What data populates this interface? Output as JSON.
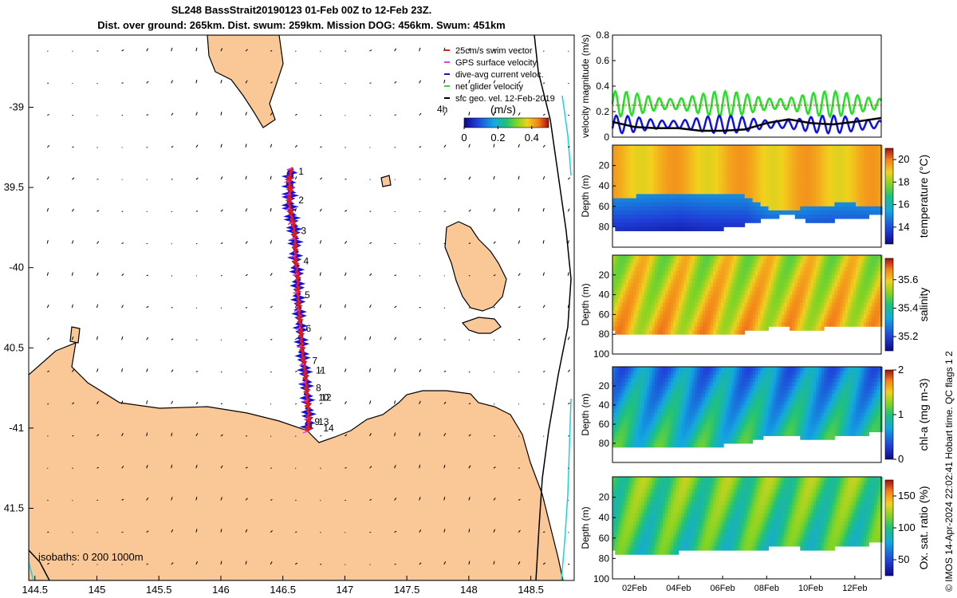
{
  "figure": {
    "title_line1": "SL248 BassStrait20190123 01-Feb 00Z to 12-Feb 23Z.",
    "title_line2": "Dist. over ground: 265km. Dist. swum: 259km. Mission DOG: 456km. Swum: 451km",
    "credit": "© IMOS 14-Apr-2024 22:02:41 Hobart time. QC flags 1  2"
  },
  "colors": {
    "land": "#f9c896",
    "swim": "#e41a1c",
    "gps": "#e040e0",
    "diveavg": "#1010e0",
    "netglider": "#22e022",
    "sfcgeo": "#000000",
    "isobath_200": "#000000",
    "isobath_1000": "#20d0d8"
  },
  "chart_data": [
    {
      "type": "map",
      "id": "track-map",
      "xlim": [
        144.45,
        148.85
      ],
      "ylim": [
        -41.95,
        -38.55
      ],
      "xticks": [
        144.5,
        145,
        145.5,
        146,
        146.5,
        147,
        147.5,
        148,
        148.5
      ],
      "xtick_labels": [
        "144.5",
        "145",
        "145.5",
        "146",
        "146.5",
        "147",
        "147.5",
        "148",
        "148.5"
      ],
      "yticks": [
        -39,
        -39.5,
        -40,
        -40.5,
        -41,
        -41.5
      ],
      "ytick_labels": [
        "-39",
        "39.5",
        "-40",
        "40.5",
        "-41",
        "41.5"
      ],
      "legend": [
        {
          "label": "25cm/s swim vector",
          "color_key": "swim"
        },
        {
          "label": "GPS surface velocity",
          "color_key": "gps"
        },
        {
          "label": "dive-avg current veloc.",
          "color_key": "diveavg"
        },
        {
          "label": "net glider velocity",
          "color_key": "netglider"
        },
        {
          "label": "sfc geo. vel. 12-Feb-2019",
          "color_key": "sfcgeo"
        }
      ],
      "colorbar": {
        "label": "(m/s)",
        "range": [
          0,
          0.5
        ],
        "tick_values": [
          0,
          0.2,
          0.4
        ],
        "tick_labels": [
          "0",
          "0.2",
          "0.4"
        ],
        "prefix": "4h"
      },
      "isobath_label": "isobaths: 0   200  1000m",
      "track_path": [
        [
          146.57,
          -39.38
        ],
        [
          146.55,
          -39.45
        ],
        [
          146.56,
          -39.52
        ],
        [
          146.55,
          -39.6
        ],
        [
          146.57,
          -39.68
        ],
        [
          146.59,
          -39.76
        ],
        [
          146.6,
          -39.85
        ],
        [
          146.6,
          -39.95
        ],
        [
          146.62,
          -40.05
        ],
        [
          146.62,
          -40.15
        ],
        [
          146.63,
          -40.25
        ],
        [
          146.64,
          -40.35
        ],
        [
          146.65,
          -40.45
        ],
        [
          146.66,
          -40.55
        ],
        [
          146.68,
          -40.65
        ],
        [
          146.69,
          -40.75
        ],
        [
          146.7,
          -40.85
        ],
        [
          146.71,
          -40.95
        ],
        [
          146.7,
          -41.02
        ]
      ],
      "day_markers": [
        {
          "label": "1",
          "lon": 146.6,
          "lat": -39.4
        },
        {
          "label": "2",
          "lon": 146.6,
          "lat": -39.58
        },
        {
          "label": "3",
          "lon": 146.62,
          "lat": -39.77
        },
        {
          "label": "4",
          "lon": 146.64,
          "lat": -39.96
        },
        {
          "label": "5",
          "lon": 146.65,
          "lat": -40.17
        },
        {
          "label": "6",
          "lon": 146.66,
          "lat": -40.38
        },
        {
          "label": "7",
          "lon": 146.71,
          "lat": -40.58
        },
        {
          "label": "11",
          "lon": 146.74,
          "lat": -40.64
        },
        {
          "label": "8",
          "lon": 146.74,
          "lat": -40.75
        },
        {
          "label": "10",
          "lon": 146.76,
          "lat": -40.81
        },
        {
          "label": "12",
          "lon": 146.78,
          "lat": -40.81
        },
        {
          "label": "13",
          "lon": 146.76,
          "lat": -40.96
        },
        {
          "label": "9",
          "lon": 146.73,
          "lat": -40.96
        },
        {
          "label": "14",
          "lon": 146.8,
          "lat": -41.0
        }
      ]
    },
    {
      "type": "line",
      "id": "velocity-panel",
      "ylabel": "velocity magnitude (m/s)",
      "ylim": [
        0,
        0.8
      ],
      "yticks": [
        0,
        0.2,
        0.4,
        0.6,
        0.8
      ],
      "ytick_labels": [
        "0",
        "0.2",
        "0.4",
        "0.6",
        "0.8"
      ],
      "x_days": [
        1,
        13.2
      ],
      "series": [
        {
          "name": "net glider velocity",
          "color_key": "netglider",
          "base": 0.26,
          "amplitude": 0.1,
          "period_days": 0.5
        },
        {
          "name": "dive-avg current veloc.",
          "color_key": "diveavg",
          "base": 0.1,
          "amplitude": 0.07,
          "period_days": 0.52
        },
        {
          "name": "swim speed",
          "color_key": "swim",
          "constant": 0.25
        },
        {
          "name": "smoothed current",
          "color_key": "sfcgeo",
          "points": [
            [
              1,
              0.12
            ],
            [
              2,
              0.08
            ],
            [
              3,
              0.07
            ],
            [
              4,
              0.07
            ],
            [
              5,
              0.05
            ],
            [
              6,
              0.05
            ],
            [
              7,
              0.06
            ],
            [
              8,
              0.11
            ],
            [
              9,
              0.14
            ],
            [
              10,
              0.11
            ],
            [
              11,
              0.1
            ],
            [
              12,
              0.12
            ],
            [
              13.2,
              0.15
            ]
          ]
        }
      ]
    },
    {
      "type": "heatmap",
      "id": "temperature-panel",
      "ylabel": "Depth (m)",
      "colorbar_label": "temperature (°C)",
      "clim": [
        12.5,
        21
      ],
      "colorbar_ticks": [
        14,
        16,
        18,
        20
      ],
      "colorbar_tick_labels": [
        "14",
        "16",
        "18",
        "20"
      ],
      "yticks": [
        20,
        40,
        60,
        80
      ],
      "ytick_labels": [
        "20",
        "40",
        "60",
        "80"
      ],
      "ylim": [
        0,
        100
      ],
      "surface_value": 19.2,
      "deep_value": 15.0,
      "thermocline_depth": [
        [
          1,
          50
        ],
        [
          2,
          48
        ],
        [
          3,
          46
        ],
        [
          4,
          44
        ],
        [
          5,
          47
        ],
        [
          6,
          48
        ],
        [
          7,
          48
        ],
        [
          8,
          60
        ],
        [
          9,
          62
        ],
        [
          10,
          58
        ],
        [
          11,
          56
        ],
        [
          12,
          56
        ],
        [
          13.2,
          58
        ]
      ],
      "bottom_depth": [
        [
          1,
          80
        ],
        [
          2,
          82
        ],
        [
          3,
          82
        ],
        [
          4,
          84
        ],
        [
          5,
          82
        ],
        [
          6,
          80
        ],
        [
          7,
          76
        ],
        [
          8,
          70
        ],
        [
          9,
          66
        ],
        [
          10,
          74
        ],
        [
          11,
          72
        ],
        [
          12,
          70
        ],
        [
          13.2,
          66
        ]
      ]
    },
    {
      "type": "heatmap",
      "id": "salinity-panel",
      "ylabel": "Depth (m)",
      "colorbar_label": "salinity",
      "clim": [
        35.1,
        35.75
      ],
      "colorbar_ticks": [
        35.2,
        35.4,
        35.6
      ],
      "colorbar_tick_labels": [
        "35.2",
        "35.4",
        "35.6"
      ],
      "yticks": [
        20,
        40,
        60,
        80,
        100
      ],
      "ytick_labels": [
        "20",
        "40",
        "60",
        "80",
        "100"
      ],
      "ylim": [
        0,
        100
      ],
      "surface_value": 35.55,
      "deep_value": 35.62,
      "bottom_depth": [
        [
          1,
          76
        ],
        [
          2,
          80
        ],
        [
          3,
          80
        ],
        [
          4,
          80
        ],
        [
          5,
          78
        ],
        [
          6,
          78
        ],
        [
          7,
          76
        ],
        [
          8,
          72
        ],
        [
          9,
          72
        ],
        [
          10,
          74
        ],
        [
          11,
          70
        ],
        [
          12,
          72
        ],
        [
          13.2,
          68
        ]
      ]
    },
    {
      "type": "heatmap",
      "id": "chla-panel",
      "ylabel": "Depth (m)",
      "colorbar_label": "chl-a (mg m-3)",
      "clim": [
        0,
        2
      ],
      "colorbar_ticks": [
        0,
        1,
        2
      ],
      "colorbar_tick_labels": [
        "0",
        "1",
        "2"
      ],
      "yticks": [
        20,
        40,
        60,
        80
      ],
      "ytick_labels": [
        "20",
        "40",
        "60",
        "80"
      ],
      "ylim": [
        0,
        100
      ],
      "surface_value": 0.55,
      "deep_value": 1.05,
      "bottom_depth": [
        [
          1,
          82
        ],
        [
          2,
          84
        ],
        [
          3,
          84
        ],
        [
          4,
          84
        ],
        [
          5,
          82
        ],
        [
          6,
          80
        ],
        [
          7,
          78
        ],
        [
          8,
          70
        ],
        [
          9,
          70
        ],
        [
          10,
          74
        ],
        [
          11,
          72
        ],
        [
          12,
          70
        ],
        [
          13.2,
          66
        ]
      ]
    },
    {
      "type": "heatmap",
      "id": "oxygen-panel",
      "ylabel": "Depth (m)",
      "colorbar_label": "Ox. sat. ratio (%)",
      "clim": [
        25,
        175
      ],
      "colorbar_ticks": [
        50,
        100,
        150
      ],
      "colorbar_tick_labels": [
        "50",
        "100",
        "150"
      ],
      "yticks": [
        20,
        40,
        60,
        80,
        100
      ],
      "ytick_labels": [
        "20",
        "40",
        "60",
        "80",
        "100"
      ],
      "ylim": [
        0,
        100
      ],
      "surface_value": 112,
      "deep_value": 95,
      "bottom_depth": [
        [
          1,
          72
        ],
        [
          2,
          74
        ],
        [
          3,
          74
        ],
        [
          4,
          72
        ],
        [
          5,
          72
        ],
        [
          6,
          70
        ],
        [
          7,
          70
        ],
        [
          8,
          68
        ],
        [
          9,
          66
        ],
        [
          10,
          70
        ],
        [
          11,
          68
        ],
        [
          12,
          66
        ],
        [
          13.2,
          62
        ]
      ],
      "xticks": [
        2,
        4,
        6,
        8,
        10,
        12
      ],
      "xtick_labels": [
        "02Feb",
        "04Feb",
        "06Feb",
        "08Feb",
        "10Feb",
        "12Feb"
      ]
    }
  ]
}
